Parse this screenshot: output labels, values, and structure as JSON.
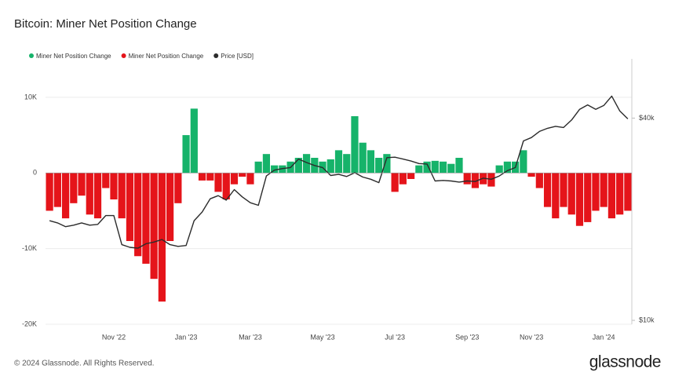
{
  "chart_data": {
    "type": "bar",
    "title": "Bitcoin: Miner Net Position Change",
    "footer": "© 2024 Glassnode. All Rights Reserved.",
    "brand": "glassnode",
    "categories": [
      null,
      null,
      null,
      null,
      null,
      null,
      null,
      null,
      "Nov '22",
      null,
      null,
      null,
      null,
      null,
      null,
      null,
      null,
      "Jan '23",
      null,
      null,
      null,
      null,
      null,
      null,
      null,
      "Mar '23",
      null,
      null,
      null,
      null,
      null,
      null,
      null,
      null,
      "May '23",
      null,
      null,
      null,
      null,
      null,
      null,
      null,
      null,
      "Jul '23",
      null,
      null,
      null,
      null,
      null,
      null,
      null,
      null,
      "Sep '23",
      null,
      null,
      null,
      null,
      null,
      null,
      null,
      "Nov '23",
      null,
      null,
      null,
      null,
      null,
      null,
      null,
      null,
      "Jan '24",
      null,
      null,
      null
    ],
    "series": [
      {
        "name": "Miner Net Position Change",
        "color": "#16b36a",
        "values": [
          null,
          null,
          null,
          null,
          null,
          null,
          null,
          null,
          null,
          null,
          null,
          null,
          null,
          null,
          null,
          null,
          null,
          5000,
          8500,
          null,
          null,
          null,
          null,
          null,
          null,
          null,
          1500,
          2500,
          1000,
          1000,
          1500,
          2000,
          2500,
          2000,
          1500,
          1800,
          3000,
          2500,
          7500,
          4000,
          3000,
          2000,
          2500,
          null,
          null,
          null,
          1000,
          1500,
          1600,
          1500,
          1200,
          2000,
          null,
          null,
          null,
          null,
          1000,
          1500,
          1500,
          3000,
          null,
          null,
          null,
          null,
          null,
          null,
          null,
          null,
          null,
          null,
          null,
          null,
          null
        ]
      },
      {
        "name": "Miner Net Position Change",
        "color": "#e5141a",
        "values": [
          -5000,
          -4500,
          -6000,
          -4000,
          -3000,
          -5500,
          -6000,
          -2000,
          -3500,
          -6000,
          -9000,
          -11000,
          -12000,
          -14000,
          -17000,
          -9000,
          -4000,
          null,
          null,
          -1000,
          -1000,
          -2500,
          -3500,
          -1500,
          -500,
          -1500,
          null,
          null,
          null,
          null,
          null,
          null,
          null,
          null,
          null,
          null,
          null,
          null,
          null,
          null,
          null,
          null,
          null,
          -2500,
          -1500,
          -800,
          null,
          null,
          null,
          null,
          null,
          null,
          -1500,
          -2000,
          -1500,
          -1800,
          null,
          null,
          null,
          null,
          -500,
          -2000,
          -4500,
          -6000,
          -4500,
          -5500,
          -7000,
          -6500,
          -5000,
          -4500,
          -6000,
          -5500,
          -5000
        ]
      },
      {
        "name": "Price [USD]",
        "color": "#2b2b2b",
        "axis": "y2",
        "type": "line",
        "values": [
          19800,
          19500,
          19000,
          19200,
          19500,
          19200,
          19300,
          20500,
          20500,
          16800,
          16500,
          16400,
          16900,
          17100,
          17400,
          16800,
          16600,
          16700,
          19800,
          21000,
          23000,
          23500,
          22800,
          24500,
          23300,
          22400,
          22000,
          26900,
          28000,
          28300,
          28500,
          30200,
          29500,
          28900,
          28500,
          27000,
          27200,
          26800,
          27500,
          26700,
          26300,
          25700,
          30500,
          30600,
          30200,
          29800,
          29300,
          29200,
          26000,
          26100,
          26000,
          25800,
          26000,
          25900,
          26500,
          26300,
          26900,
          27900,
          28500,
          34200,
          35000,
          36500,
          37300,
          37800,
          37500,
          39500,
          42500,
          43800,
          42500,
          43600,
          46500,
          42000,
          39800
        ]
      }
    ],
    "ylim": [
      -20000,
      13000
    ],
    "yticks": [
      {
        "value": 10000,
        "label": "10K"
      },
      0,
      {
        "value": -10000,
        "label": "-10K"
      },
      {
        "value": -20000,
        "label": "-20K"
      }
    ],
    "y2lim": [
      9735,
      53900
    ],
    "y2ticks": [
      {
        "value": 40000,
        "label": "$40k"
      },
      {
        "value": 10000,
        "label": "$10k"
      }
    ],
    "y2log": true,
    "grid": true
  }
}
